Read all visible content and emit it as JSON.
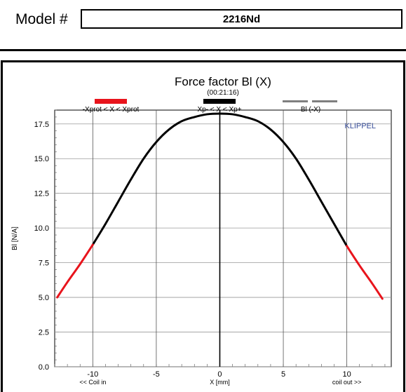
{
  "header": {
    "model_label": "Model #",
    "model_value": "2216Nd"
  },
  "chart_data": {
    "type": "line",
    "title": "Force factor Bl (X)",
    "subtitle": "(00:21:16)",
    "brand": "KLIPPEL",
    "ylabel": "Bl [N/A]",
    "xlabel": "X [mm]",
    "x_annotation_left": "<< Coil in",
    "x_annotation_right": "coil out >>",
    "xlim": [
      -13,
      13.5
    ],
    "ylim": [
      0,
      18.5
    ],
    "x_ticks": [
      -10,
      -5,
      0,
      5,
      10
    ],
    "x_tick_labels": [
      "-10",
      "-5",
      "0",
      "5",
      "10"
    ],
    "y_ticks": [
      0,
      2.5,
      5,
      7.5,
      10,
      12.5,
      15,
      17.5
    ],
    "y_tick_labels": [
      "0.0",
      "2.5",
      "5.0",
      "7.5",
      "10.0",
      "12.5",
      "15.0",
      "17.5"
    ],
    "grid": true,
    "legend": [
      {
        "label": "-Xprot < X < Xprot",
        "color": "#e8141c"
      },
      {
        "label": "Xp- < X < Xp+",
        "color": "#000000"
      },
      {
        "label": "Bl (-X)",
        "color": "#7f7f7f"
      }
    ],
    "series": [
      {
        "color": "#000000",
        "x": [
          -10,
          -9,
          -8,
          -7,
          -6,
          -5,
          -4,
          -3,
          -2,
          -1,
          0,
          1,
          2,
          3,
          4,
          5,
          6,
          7,
          8,
          9,
          10
        ],
        "values": [
          8.8,
          10.3,
          11.9,
          13.5,
          15.0,
          16.2,
          17.1,
          17.7,
          18.0,
          18.2,
          18.25,
          18.2,
          18.0,
          17.7,
          17.1,
          16.2,
          15.0,
          13.5,
          11.9,
          10.3,
          8.7
        ]
      },
      {
        "color": "#e8141c",
        "x": [
          -12.8,
          -12,
          -11,
          -10
        ],
        "values": [
          5.0,
          6.1,
          7.4,
          8.8
        ]
      },
      {
        "color": "#e8141c",
        "x": [
          10,
          11,
          12,
          12.8
        ],
        "values": [
          8.7,
          7.3,
          6.0,
          4.9
        ]
      }
    ]
  }
}
